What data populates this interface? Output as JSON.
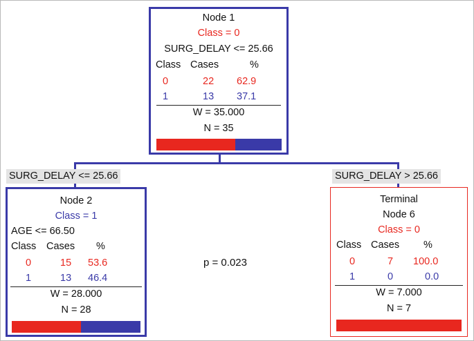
{
  "root": {
    "title": "Node 1",
    "class_label": "Class = 0",
    "split": "SURG_DELAY <= 25.66",
    "header": {
      "class": "Class",
      "cases": "Cases",
      "pct": "%"
    },
    "rows": [
      {
        "class": "0",
        "cases": "22",
        "pct": "62.9"
      },
      {
        "class": "1",
        "cases": "13",
        "pct": "37.1"
      }
    ],
    "w": "W = 35.000",
    "n": "N = 35",
    "share": [
      0.629,
      0.371
    ]
  },
  "left_branch_label": "SURG_DELAY <= 25.66",
  "right_branch_label": "SURG_DELAY >  25.66",
  "node2": {
    "title": "Node 2",
    "class_label": "Class = 1",
    "split": "AGE <= 66.50",
    "header": {
      "class": "Class",
      "cases": "Cases",
      "pct": "%"
    },
    "rows": [
      {
        "class": "0",
        "cases": "15",
        "pct": "53.6"
      },
      {
        "class": "1",
        "cases": "13",
        "pct": "46.4"
      }
    ],
    "w": "W = 28.000",
    "n": "N = 28",
    "share": [
      0.536,
      0.464
    ]
  },
  "node6": {
    "terminal": "Terminal",
    "title": "Node 6",
    "class_label": "Class = 0",
    "header": {
      "class": "Class",
      "cases": "Cases",
      "pct": "%"
    },
    "rows": [
      {
        "class": "0",
        "cases": "7",
        "pct": "100.0"
      },
      {
        "class": "1",
        "cases": "0",
        "pct": "0.0"
      }
    ],
    "w": "W = 7.000",
    "n": "N = 7",
    "share": [
      1.0,
      0.0
    ]
  },
  "p_value": "p = 0.023",
  "colors": {
    "class0": "#e8271f",
    "class1": "#3a3aa8",
    "node_border": "#3a3aa8",
    "terminal_border": "#e8271f"
  }
}
